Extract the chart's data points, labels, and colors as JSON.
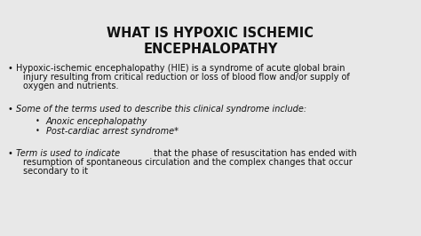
{
  "background_color": "#e8e8e8",
  "title_line1": "WHAT IS HYPOXIC ISCHEMIC",
  "title_line2": "ENCEPHALOPATHY",
  "title_fontsize": 10.5,
  "title_color": "#111111",
  "body_fontsize": 7.0,
  "body_color": "#111111",
  "bullet1_text": "Hypoxic-ischemic encephalopathy (HIE) is a syndrome of acute global brain\ninjury resulting from critical reduction or loss of blood flow and/or supply of\noxygen and nutrients.",
  "bullet2_italic": "Some of the terms used to describe this clinical syndrome include:",
  "sub_bullet1": "Anoxic encephalopathy",
  "sub_bullet2": "Post-cardiac arrest syndrome*",
  "bullet3_italic_part": "Term is used to indicate",
  "bullet3_normal_part": " that the phase of resuscitation has ended with\nresumption of spontaneous circulation and the complex changes that occur\nsecondary to it"
}
